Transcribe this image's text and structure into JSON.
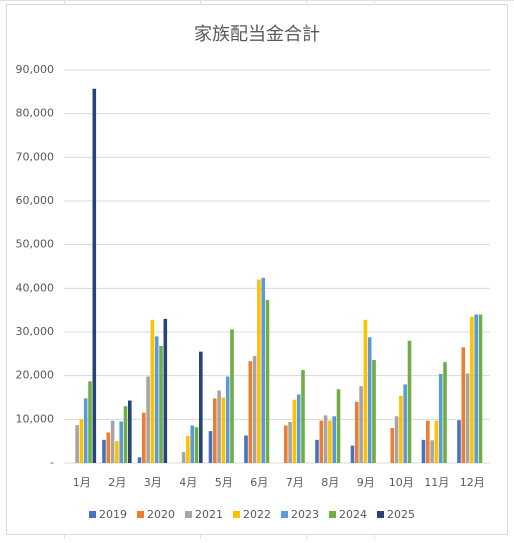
{
  "chart_data": {
    "type": "bar",
    "title": "家族配当金合計",
    "categories": [
      "1月",
      "2月",
      "3月",
      "4月",
      "5月",
      "6月",
      "7月",
      "8月",
      "9月",
      "10月",
      "11月",
      "12月"
    ],
    "series": [
      {
        "name": "2019",
        "color": "#4472c4",
        "values": [
          0,
          5300,
          1300,
          0,
          7300,
          6300,
          0,
          5300,
          4000,
          0,
          5300,
          9800
        ]
      },
      {
        "name": "2020",
        "color": "#ed7d31",
        "values": [
          0,
          7000,
          11500,
          0,
          14800,
          23300,
          8600,
          9700,
          14000,
          8000,
          9700,
          26500
        ]
      },
      {
        "name": "2021",
        "color": "#a5a5a5",
        "values": [
          8700,
          9700,
          19800,
          2500,
          16600,
          24500,
          9400,
          10900,
          17600,
          10700,
          5200,
          20500
        ]
      },
      {
        "name": "2022",
        "color": "#ffc000",
        "values": [
          10000,
          5000,
          32800,
          6200,
          15000,
          42000,
          14500,
          9700,
          32800,
          15400,
          9700,
          33500
        ]
      },
      {
        "name": "2023",
        "color": "#5b9bd5",
        "values": [
          14800,
          9500,
          29000,
          8600,
          19800,
          42400,
          15700,
          10700,
          28800,
          18000,
          20400,
          34000
        ]
      },
      {
        "name": "2024",
        "color": "#70ad47",
        "values": [
          18700,
          13000,
          26800,
          8200,
          30600,
          37300,
          21300,
          16900,
          23600,
          28000,
          23100,
          34000
        ]
      },
      {
        "name": "2025",
        "color": "#264478",
        "values": [
          85700,
          14300,
          33000,
          25500,
          0,
          0,
          0,
          0,
          0,
          0,
          0,
          0
        ]
      }
    ],
    "ylim": [
      0,
      90000
    ],
    "yticks": [
      {
        "value": 0,
        "label": "-"
      },
      {
        "value": 10000,
        "label": "10,000"
      },
      {
        "value": 20000,
        "label": "20,000"
      },
      {
        "value": 30000,
        "label": "30,000"
      },
      {
        "value": 40000,
        "label": "40,000"
      },
      {
        "value": 50000,
        "label": "50,000"
      },
      {
        "value": 60000,
        "label": "60,000"
      },
      {
        "value": 70000,
        "label": "70,000"
      },
      {
        "value": 80000,
        "label": "80,000"
      },
      {
        "value": 90000,
        "label": "90,000"
      }
    ],
    "grid": true,
    "legend": "bottom"
  }
}
